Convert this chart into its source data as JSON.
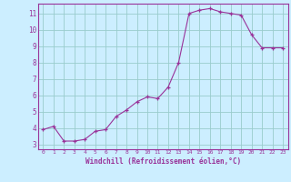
{
  "x": [
    0,
    1,
    2,
    3,
    4,
    5,
    6,
    7,
    8,
    9,
    10,
    11,
    12,
    13,
    14,
    15,
    16,
    17,
    18,
    19,
    20,
    21,
    22,
    23
  ],
  "y": [
    3.9,
    4.1,
    3.2,
    3.2,
    3.3,
    3.8,
    3.9,
    4.7,
    5.1,
    5.6,
    5.9,
    5.8,
    6.5,
    8.0,
    11.0,
    11.2,
    11.3,
    11.1,
    11.0,
    10.9,
    9.7,
    8.9,
    8.9,
    8.9
  ],
  "xlabel": "Windchill (Refroidissement éolien,°C)",
  "ylim": [
    2.7,
    11.6
  ],
  "xlim": [
    -0.5,
    23.5
  ],
  "yticks": [
    3,
    4,
    5,
    6,
    7,
    8,
    9,
    10,
    11
  ],
  "xticks": [
    0,
    1,
    2,
    3,
    4,
    5,
    6,
    7,
    8,
    9,
    10,
    11,
    12,
    13,
    14,
    15,
    16,
    17,
    18,
    19,
    20,
    21,
    22,
    23
  ],
  "line_color": "#993399",
  "marker": "+",
  "bg_color": "#cceeff",
  "grid_color": "#99cccc",
  "label_color": "#993399",
  "spine_color": "#993399"
}
